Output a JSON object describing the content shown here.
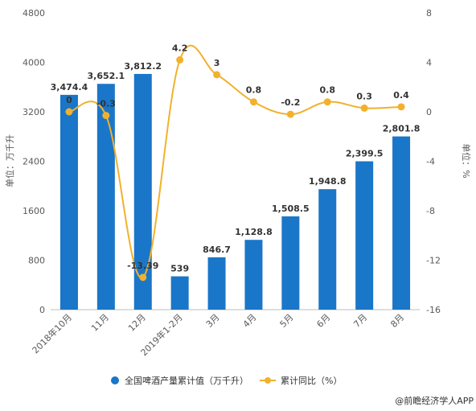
{
  "chart_data": {
    "type": "bar+line",
    "categories": [
      "2018年10月",
      "11月",
      "12月",
      "2019年1-2月",
      "3月",
      "4月",
      "5月",
      "6月",
      "7月",
      "8月"
    ],
    "series": [
      {
        "name": "全国啤酒产量累计值（万千升）",
        "type": "bar",
        "axis": "left",
        "values": [
          3474.4,
          3652.1,
          3812.2,
          539,
          846.7,
          1128.8,
          1508.5,
          1948.8,
          2399.5,
          2801.8
        ],
        "labels": [
          "3,474.4",
          "3,652.1",
          "3,812.2",
          "539",
          "846.7",
          "1,128.8",
          "1,508.5",
          "1,948.8",
          "2,399.5",
          "2,801.8"
        ],
        "color": "#1a76c8"
      },
      {
        "name": "累计同比（%）",
        "type": "line",
        "axis": "right",
        "values": [
          0,
          -0.3,
          -13.39,
          4.2,
          3,
          0.8,
          -0.2,
          0.8,
          0.3,
          0.4
        ],
        "labels": [
          "0",
          "-0.3",
          "-13.39",
          "4.2",
          "3",
          "0.8",
          "-0.2",
          "0.8",
          "0.3",
          "0.4"
        ],
        "color": "#f2b12d"
      }
    ],
    "y_left": {
      "label": "单位：万千升",
      "range": [
        0,
        4800
      ],
      "ticks": [
        "0",
        "800",
        "1600",
        "2400",
        "3200",
        "4000",
        "4800"
      ]
    },
    "y_right": {
      "label": "单位：%",
      "range": [
        -16,
        8
      ],
      "ticks": [
        "-16",
        "-12",
        "-8",
        "-4",
        "0",
        "4",
        "8"
      ]
    },
    "legend_position": "bottom",
    "grid": false
  },
  "source_text": "@前瞻经济学人APP"
}
